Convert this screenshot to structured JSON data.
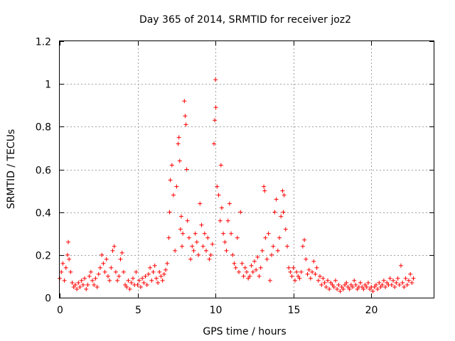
{
  "chart_data": {
    "type": "scatter",
    "title": "Day 365 of 2014, SRMTID for receiver joz2",
    "xlabel": "GPS time / hours",
    "ylabel": "SRMTID / TECUs",
    "xlim": [
      0,
      24
    ],
    "ylim": [
      0,
      1.2
    ],
    "xticks": [
      0,
      5,
      10,
      15,
      20
    ],
    "xtick_labels": [
      "0",
      "5",
      "10",
      "15",
      "20"
    ],
    "yticks": [
      0,
      0.2,
      0.4,
      0.6,
      0.8,
      1.0,
      1.2
    ],
    "ytick_labels": [
      "0",
      "0.2",
      "0.4",
      "0.6",
      "0.8",
      "1",
      "1.2"
    ],
    "grid": true,
    "marker": "+",
    "color": "#ff0000",
    "series": [
      {
        "name": "SRMTID",
        "points": [
          [
            0.0,
            0.09
          ],
          [
            0.1,
            0.12
          ],
          [
            0.2,
            0.16
          ],
          [
            0.3,
            0.08
          ],
          [
            0.4,
            0.14
          ],
          [
            0.5,
            0.2
          ],
          [
            0.55,
            0.26
          ],
          [
            0.6,
            0.18
          ],
          [
            0.7,
            0.12
          ],
          [
            0.8,
            0.07
          ],
          [
            0.9,
            0.05
          ],
          [
            1.0,
            0.06
          ],
          [
            1.1,
            0.04
          ],
          [
            1.2,
            0.07
          ],
          [
            1.3,
            0.05
          ],
          [
            1.4,
            0.08
          ],
          [
            1.5,
            0.06
          ],
          [
            1.6,
            0.09
          ],
          [
            1.7,
            0.04
          ],
          [
            1.8,
            0.06
          ],
          [
            1.9,
            0.1
          ],
          [
            2.0,
            0.12
          ],
          [
            2.1,
            0.08
          ],
          [
            2.2,
            0.06
          ],
          [
            2.3,
            0.09
          ],
          [
            2.4,
            0.05
          ],
          [
            2.5,
            0.11
          ],
          [
            2.6,
            0.14
          ],
          [
            2.7,
            0.2
          ],
          [
            2.8,
            0.16
          ],
          [
            2.9,
            0.12
          ],
          [
            3.0,
            0.18
          ],
          [
            3.1,
            0.1
          ],
          [
            3.2,
            0.08
          ],
          [
            3.3,
            0.14
          ],
          [
            3.4,
            0.22
          ],
          [
            3.5,
            0.24
          ],
          [
            3.6,
            0.12
          ],
          [
            3.7,
            0.08
          ],
          [
            3.8,
            0.1
          ],
          [
            3.9,
            0.18
          ],
          [
            4.0,
            0.21
          ],
          [
            4.1,
            0.12
          ],
          [
            4.2,
            0.06
          ],
          [
            4.3,
            0.05
          ],
          [
            4.4,
            0.08
          ],
          [
            4.5,
            0.04
          ],
          [
            4.6,
            0.07
          ],
          [
            4.7,
            0.09
          ],
          [
            4.8,
            0.06
          ],
          [
            4.9,
            0.12
          ],
          [
            5.0,
            0.06
          ],
          [
            5.1,
            0.08
          ],
          [
            5.2,
            0.05
          ],
          [
            5.3,
            0.09
          ],
          [
            5.4,
            0.07
          ],
          [
            5.5,
            0.1
          ],
          [
            5.6,
            0.06
          ],
          [
            5.7,
            0.11
          ],
          [
            5.8,
            0.14
          ],
          [
            5.9,
            0.08
          ],
          [
            6.0,
            0.12
          ],
          [
            6.1,
            0.15
          ],
          [
            6.2,
            0.09
          ],
          [
            6.3,
            0.07
          ],
          [
            6.4,
            0.12
          ],
          [
            6.5,
            0.1
          ],
          [
            6.6,
            0.08
          ],
          [
            6.7,
            0.11
          ],
          [
            6.8,
            0.13
          ],
          [
            6.9,
            0.16
          ],
          [
            7.0,
            0.28
          ],
          [
            7.05,
            0.4
          ],
          [
            7.1,
            0.55
          ],
          [
            7.2,
            0.62
          ],
          [
            7.3,
            0.48
          ],
          [
            7.4,
            0.22
          ],
          [
            7.5,
            0.52
          ],
          [
            7.6,
            0.72
          ],
          [
            7.65,
            0.75
          ],
          [
            7.7,
            0.64
          ],
          [
            7.75,
            0.32
          ],
          [
            7.8,
            0.38
          ],
          [
            7.85,
            0.24
          ],
          [
            7.9,
            0.3
          ],
          [
            8.0,
            0.92
          ],
          [
            8.05,
            0.85
          ],
          [
            8.1,
            0.81
          ],
          [
            8.15,
            0.6
          ],
          [
            8.2,
            0.36
          ],
          [
            8.3,
            0.28
          ],
          [
            8.4,
            0.18
          ],
          [
            8.5,
            0.24
          ],
          [
            8.6,
            0.22
          ],
          [
            8.7,
            0.3
          ],
          [
            8.8,
            0.26
          ],
          [
            8.9,
            0.2
          ],
          [
            9.0,
            0.44
          ],
          [
            9.1,
            0.34
          ],
          [
            9.2,
            0.24
          ],
          [
            9.3,
            0.3
          ],
          [
            9.4,
            0.22
          ],
          [
            9.5,
            0.28
          ],
          [
            9.6,
            0.18
          ],
          [
            9.7,
            0.2
          ],
          [
            9.8,
            0.25
          ],
          [
            9.9,
            0.72
          ],
          [
            9.95,
            0.83
          ],
          [
            10.0,
            1.02
          ],
          [
            10.02,
            0.89
          ],
          [
            10.1,
            0.52
          ],
          [
            10.2,
            0.48
          ],
          [
            10.3,
            0.36
          ],
          [
            10.35,
            0.62
          ],
          [
            10.4,
            0.42
          ],
          [
            10.5,
            0.3
          ],
          [
            10.6,
            0.26
          ],
          [
            10.7,
            0.22
          ],
          [
            10.8,
            0.36
          ],
          [
            10.9,
            0.44
          ],
          [
            11.0,
            0.3
          ],
          [
            11.1,
            0.2
          ],
          [
            11.2,
            0.16
          ],
          [
            11.3,
            0.14
          ],
          [
            11.4,
            0.28
          ],
          [
            11.5,
            0.12
          ],
          [
            11.6,
            0.4
          ],
          [
            11.7,
            0.16
          ],
          [
            11.8,
            0.1
          ],
          [
            11.9,
            0.14
          ],
          [
            12.0,
            0.12
          ],
          [
            12.1,
            0.09
          ],
          [
            12.2,
            0.1
          ],
          [
            12.3,
            0.15
          ],
          [
            12.4,
            0.12
          ],
          [
            12.5,
            0.17
          ],
          [
            12.6,
            0.13
          ],
          [
            12.7,
            0.19
          ],
          [
            12.8,
            0.1
          ],
          [
            12.9,
            0.14
          ],
          [
            13.0,
            0.22
          ],
          [
            13.1,
            0.52
          ],
          [
            13.15,
            0.5
          ],
          [
            13.2,
            0.28
          ],
          [
            13.3,
            0.18
          ],
          [
            13.4,
            0.3
          ],
          [
            13.5,
            0.08
          ],
          [
            13.6,
            0.2
          ],
          [
            13.7,
            0.24
          ],
          [
            13.8,
            0.4
          ],
          [
            13.9,
            0.46
          ],
          [
            14.0,
            0.22
          ],
          [
            14.1,
            0.28
          ],
          [
            14.2,
            0.38
          ],
          [
            14.3,
            0.5
          ],
          [
            14.35,
            0.4
          ],
          [
            14.4,
            0.48
          ],
          [
            14.5,
            0.32
          ],
          [
            14.6,
            0.24
          ],
          [
            14.7,
            0.14
          ],
          [
            14.8,
            0.12
          ],
          [
            14.9,
            0.1
          ],
          [
            15.0,
            0.14
          ],
          [
            15.1,
            0.08
          ],
          [
            15.2,
            0.12
          ],
          [
            15.3,
            0.1
          ],
          [
            15.4,
            0.09
          ],
          [
            15.5,
            0.12
          ],
          [
            15.6,
            0.24
          ],
          [
            15.7,
            0.27
          ],
          [
            15.8,
            0.18
          ],
          [
            15.9,
            0.11
          ],
          [
            16.0,
            0.13
          ],
          [
            16.1,
            0.09
          ],
          [
            16.2,
            0.12
          ],
          [
            16.3,
            0.17
          ],
          [
            16.4,
            0.11
          ],
          [
            16.5,
            0.14
          ],
          [
            16.6,
            0.08
          ],
          [
            16.7,
            0.1
          ],
          [
            16.8,
            0.06
          ],
          [
            16.9,
            0.09
          ],
          [
            17.0,
            0.07
          ],
          [
            17.1,
            0.05
          ],
          [
            17.2,
            0.08
          ],
          [
            17.3,
            0.04
          ],
          [
            17.4,
            0.07
          ],
          [
            17.5,
            0.06
          ],
          [
            17.6,
            0.05
          ],
          [
            17.7,
            0.08
          ],
          [
            17.8,
            0.04
          ],
          [
            17.9,
            0.06
          ],
          [
            18.0,
            0.03
          ],
          [
            18.1,
            0.05
          ],
          [
            18.2,
            0.04
          ],
          [
            18.3,
            0.06
          ],
          [
            18.4,
            0.07
          ],
          [
            18.5,
            0.05
          ],
          [
            18.6,
            0.04
          ],
          [
            18.7,
            0.06
          ],
          [
            18.8,
            0.05
          ],
          [
            18.9,
            0.08
          ],
          [
            19.0,
            0.06
          ],
          [
            19.1,
            0.04
          ],
          [
            19.2,
            0.05
          ],
          [
            19.3,
            0.07
          ],
          [
            19.4,
            0.05
          ],
          [
            19.5,
            0.04
          ],
          [
            19.6,
            0.06
          ],
          [
            19.7,
            0.05
          ],
          [
            19.8,
            0.07
          ],
          [
            19.9,
            0.04
          ],
          [
            20.0,
            0.05
          ],
          [
            20.1,
            0.03
          ],
          [
            20.2,
            0.05
          ],
          [
            20.3,
            0.06
          ],
          [
            20.4,
            0.04
          ],
          [
            20.5,
            0.07
          ],
          [
            20.6,
            0.05
          ],
          [
            20.7,
            0.06
          ],
          [
            20.8,
            0.08
          ],
          [
            20.9,
            0.05
          ],
          [
            21.0,
            0.07
          ],
          [
            21.1,
            0.06
          ],
          [
            21.2,
            0.09
          ],
          [
            21.3,
            0.06
          ],
          [
            21.4,
            0.08
          ],
          [
            21.5,
            0.05
          ],
          [
            21.6,
            0.07
          ],
          [
            21.7,
            0.09
          ],
          [
            21.8,
            0.06
          ],
          [
            21.9,
            0.15
          ],
          [
            22.0,
            0.07
          ],
          [
            22.1,
            0.05
          ],
          [
            22.2,
            0.09
          ],
          [
            22.3,
            0.06
          ],
          [
            22.4,
            0.08
          ],
          [
            22.5,
            0.11
          ],
          [
            22.6,
            0.07
          ],
          [
            22.7,
            0.09
          ]
        ]
      }
    ]
  }
}
